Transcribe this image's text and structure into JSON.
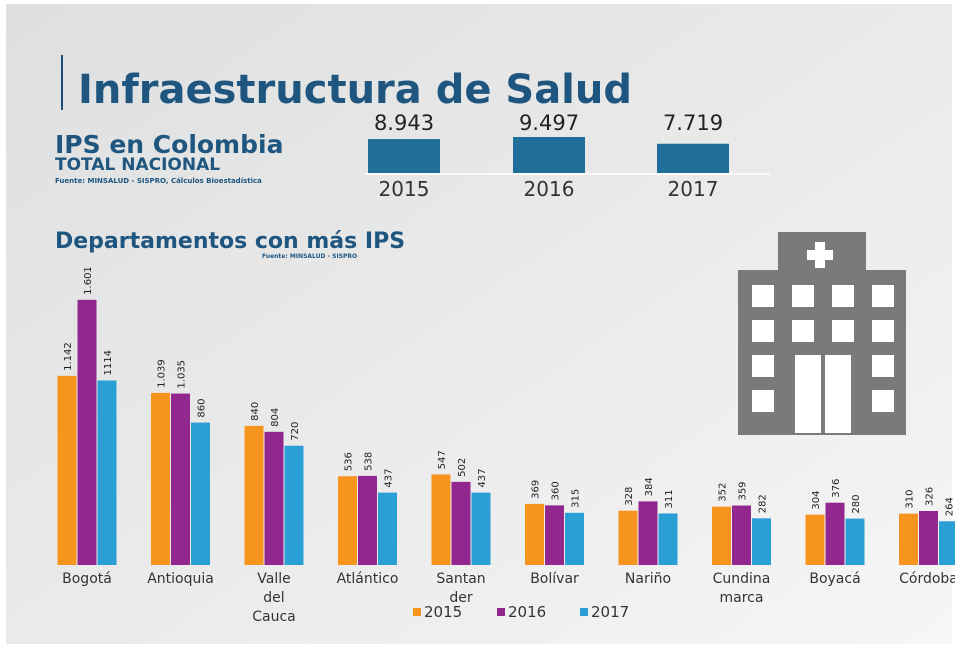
{
  "header": {
    "title": "Infraestructura de Salud",
    "subtitle": "IPS en Colombia",
    "caption": "TOTAL NACIONAL",
    "source": "Fuente: MINSALUD - SISPRO, Cálculos Bioestadística"
  },
  "chart_data": [
    {
      "type": "bar",
      "categories": [
        "2015",
        "2016",
        "2017"
      ],
      "values": [
        8943,
        9497,
        7719
      ],
      "value_labels": [
        "8.943",
        "9.497",
        "7.719"
      ],
      "color": "#1f6f9a",
      "ylim": [
        0,
        9497
      ]
    },
    {
      "type": "grouped_bar",
      "title": "Departamentos con más IPS",
      "subtitle": "Fuente: MINSALUD - SISPRO",
      "categories": [
        "Bogotá",
        "Antioquia",
        "Valle del Cauca",
        "Atlántico",
        "Santan der",
        "Bolívar",
        "Nariño",
        "Cundina marca",
        "Boyacá",
        "Córdoba"
      ],
      "series": [
        {
          "name": "2015",
          "color": "#f7941d",
          "values": [
            1142,
            1039,
            840,
            536,
            547,
            369,
            328,
            352,
            304,
            310
          ],
          "value_labels": [
            "1.142",
            "1.039",
            "840",
            "536",
            "547",
            "369",
            "328",
            "352",
            "304",
            "310"
          ]
        },
        {
          "name": "2016",
          "color": "#92278f",
          "values": [
            1601,
            1035,
            804,
            538,
            502,
            360,
            384,
            359,
            376,
            326
          ],
          "value_labels": [
            "1.601",
            "1.035",
            "804",
            "538",
            "502",
            "360",
            "384",
            "359",
            "376",
            "326"
          ]
        },
        {
          "name": "2017",
          "color": "#2a9fd6",
          "values": [
            1114,
            860,
            720,
            437,
            437,
            315,
            311,
            282,
            280,
            264
          ],
          "value_labels": [
            "1114",
            "860",
            "720",
            "437",
            "437",
            "315",
            "311",
            "282",
            "280",
            "264"
          ]
        }
      ],
      "ylim": [
        0,
        1600
      ],
      "legend": "bottom"
    }
  ]
}
